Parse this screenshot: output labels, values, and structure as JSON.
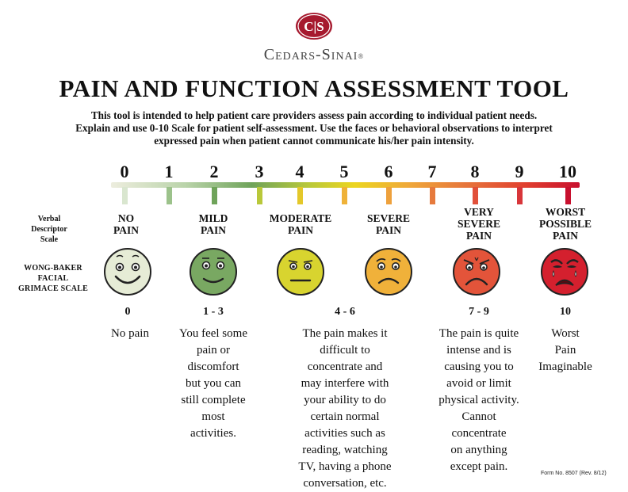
{
  "header": {
    "logo_monogram": "C|S",
    "brand_name": "Cedars-Sinai",
    "brand_registered": "®",
    "title": "PAIN AND FUNCTION ASSESSMENT TOOL",
    "intro_lines": [
      "This tool is intended to help patient care providers assess pain according to individual patient needs.",
      "Explain and use 0-10 Scale for patient self-assessment. Use the faces or behavioral observations to interpret",
      "expressed pain when patient cannot communicate his/her pain intensity."
    ]
  },
  "scale": {
    "numbers": [
      "0",
      "1",
      "2",
      "3",
      "4",
      "5",
      "6",
      "7",
      "8",
      "9",
      "10"
    ],
    "tick_colors": [
      "#d9e6cf",
      "#9cc28b",
      "#6fa35a",
      "#b9c83a",
      "#e4c82a",
      "#efb238",
      "#eea13c",
      "#e67a3d",
      "#e1503a",
      "#d8363a",
      "#c8102e"
    ]
  },
  "labels": {
    "verbal_lines": [
      "Verbal",
      "Descriptor",
      "Scale"
    ],
    "wong_lines": [
      "WONG-BAKER",
      "FACIAL",
      "GRIMACE SCALE"
    ]
  },
  "faces": [
    {
      "descriptor": [
        "NO",
        "PAIN"
      ],
      "range": "0",
      "meaning": [
        "No pain"
      ],
      "color": "#e6ecd6",
      "expression": "happy-face-icon"
    },
    {
      "descriptor": [
        "MILD",
        "PAIN"
      ],
      "range": "1 - 3",
      "meaning": [
        "You feel some",
        "pain or",
        "discomfort",
        "but you can",
        "still complete",
        "most",
        "activities."
      ],
      "color": "#79a862",
      "expression": "smile-face-icon"
    },
    {
      "descriptor": [
        "MODERATE",
        "PAIN"
      ],
      "range": "4 - 6",
      "meaning": [
        "The pain makes it",
        "difficult to",
        "concentrate and",
        "may interfere with",
        "your ability to do",
        "certain normal",
        "activities such as",
        "reading, watching",
        "TV, having a phone",
        "conversation, etc."
      ],
      "color": "#d8d42f",
      "expression": "neutral-face-icon"
    },
    {
      "descriptor": [
        "SEVERE",
        "PAIN"
      ],
      "range": "",
      "meaning": [],
      "color": "#f0b13a",
      "expression": "frown-face-icon"
    },
    {
      "descriptor": [
        "VERY",
        "SEVERE",
        "PAIN"
      ],
      "range": "7 - 9",
      "meaning": [
        "The pain is quite",
        "intense and is",
        "causing you to",
        "avoid or limit",
        "physical activity.",
        "Cannot",
        "concentrate",
        "on anything",
        "except pain."
      ],
      "color": "#e3543a",
      "expression": "grimace-face-icon"
    },
    {
      "descriptor": [
        "WORST",
        "POSSIBLE",
        "PAIN"
      ],
      "range": "10",
      "meaning": [
        "Worst",
        "Pain",
        "Imaginable"
      ],
      "color": "#d4202e",
      "expression": "crying-face-icon"
    }
  ],
  "footer": {
    "form_number": "Form No. 8507 (Rev. 8/12)"
  }
}
